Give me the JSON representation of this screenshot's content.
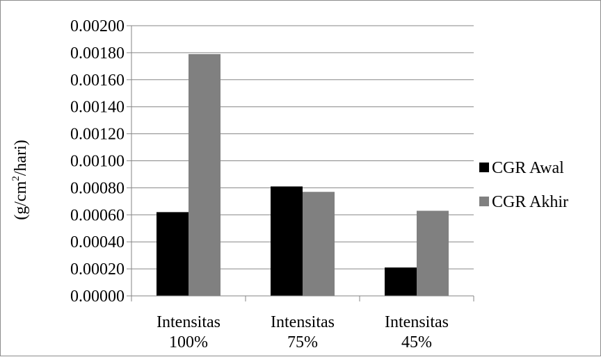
{
  "chart_data": {
    "type": "bar",
    "categories": [
      [
        "Intensitas",
        "100%"
      ],
      [
        "Intensitas",
        "75%"
      ],
      [
        "Intensitas",
        "45%"
      ]
    ],
    "series": [
      {
        "name": "CGR Awal",
        "color": "#000000",
        "values": [
          0.00062,
          0.00081,
          0.00021
        ]
      },
      {
        "name": "CGR Akhir",
        "color": "#808080",
        "values": [
          0.00179,
          0.00077,
          0.00063
        ]
      }
    ],
    "ylabel": "(g/cm²/hari)",
    "ylabel_parts": [
      "(g/cm",
      "2",
      "/hari)"
    ],
    "ylim": [
      0,
      0.002
    ],
    "yticks": [
      "0.00000",
      "0.00020",
      "0.00040",
      "0.00060",
      "0.00080",
      "0.00100",
      "0.00120",
      "0.00140",
      "0.00160",
      "0.00180",
      "0.00200"
    ],
    "ytick_values": [
      0,
      0.0002,
      0.0004,
      0.0006,
      0.0008,
      0.001,
      0.0012,
      0.0014,
      0.0016,
      0.0018,
      0.002
    ],
    "grid": true,
    "legend_position": "right",
    "gridline_color": "#868686"
  }
}
